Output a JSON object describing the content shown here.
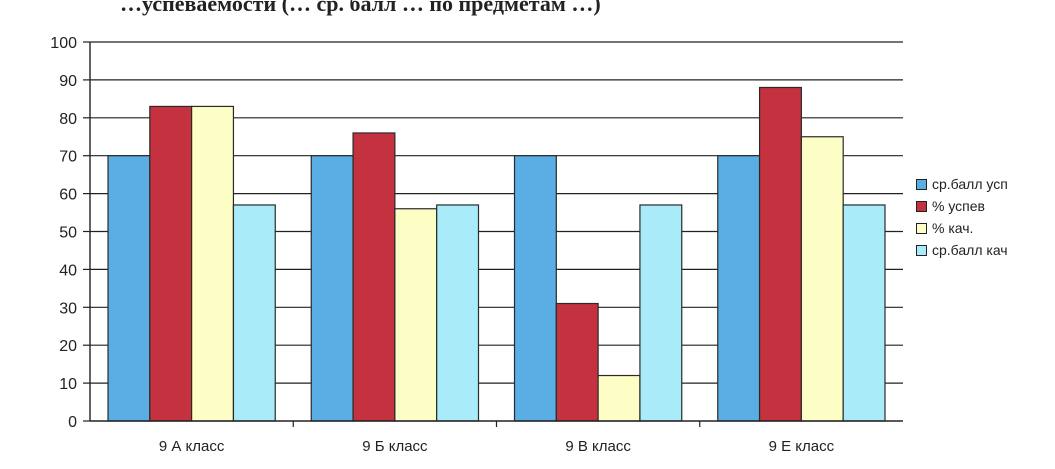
{
  "chart_data": {
    "type": "bar",
    "title": "…успеваемости (… ср. балл … по предметам …)",
    "categories": [
      "9 А класс",
      "9 Б класс",
      "9 В класс",
      "9 Е класс"
    ],
    "series": [
      {
        "name": "ср.балл усп",
        "color": "#5aaee4",
        "values": [
          70,
          70,
          70,
          70
        ]
      },
      {
        "name": "% успев",
        "color": "#c4323f",
        "values": [
          83,
          76,
          31,
          88
        ]
      },
      {
        "name": "% кач.",
        "color": "#fdfdc6",
        "values": [
          83,
          56,
          12,
          75
        ]
      },
      {
        "name": "ср.балл кач",
        "color": "#a9ebf9",
        "values": [
          57,
          57,
          57,
          57
        ]
      }
    ],
    "y_ticks": [
      "0",
      "10",
      "20",
      "30",
      "40",
      "50",
      "60",
      "70",
      "80",
      "90",
      "100"
    ],
    "ylim": [
      0,
      100
    ],
    "grid": true,
    "legend_position": "right"
  }
}
